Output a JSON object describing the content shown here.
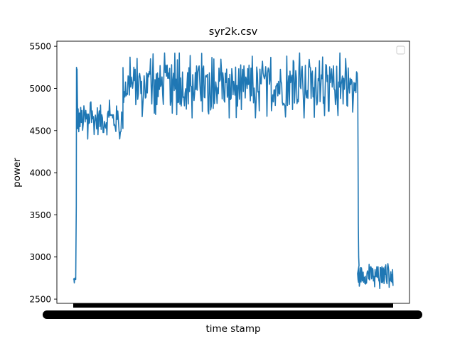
{
  "chart_data": {
    "type": "line",
    "title": "syr2k.csv",
    "xlabel": "time stamp",
    "ylabel": "power",
    "ylim": [
      2450,
      5560
    ],
    "yticks": [
      2500,
      3000,
      3500,
      4000,
      4500,
      5000,
      5500
    ],
    "xticklabels_note": "dense overlapping tick labels (illegible)",
    "grid": false,
    "legend": "top-right (empty)",
    "series_color": "#1f77b4",
    "segments": [
      {
        "phase": "idle-start",
        "x": [
          0,
          4
        ],
        "y_range": [
          2650,
          2800
        ]
      },
      {
        "phase": "spike",
        "x": [
          4,
          6
        ],
        "y_range": [
          4900,
          5260
        ]
      },
      {
        "phase": "load-1",
        "x": [
          6,
          70
        ],
        "y_range": [
          4350,
          4900
        ]
      },
      {
        "phase": "load-2",
        "x": [
          70,
          400
        ],
        "y_range": [
          4650,
          5420
        ]
      },
      {
        "phase": "idle-end",
        "x": [
          400,
          450
        ],
        "y_range": [
          2620,
          2950
        ]
      }
    ]
  }
}
